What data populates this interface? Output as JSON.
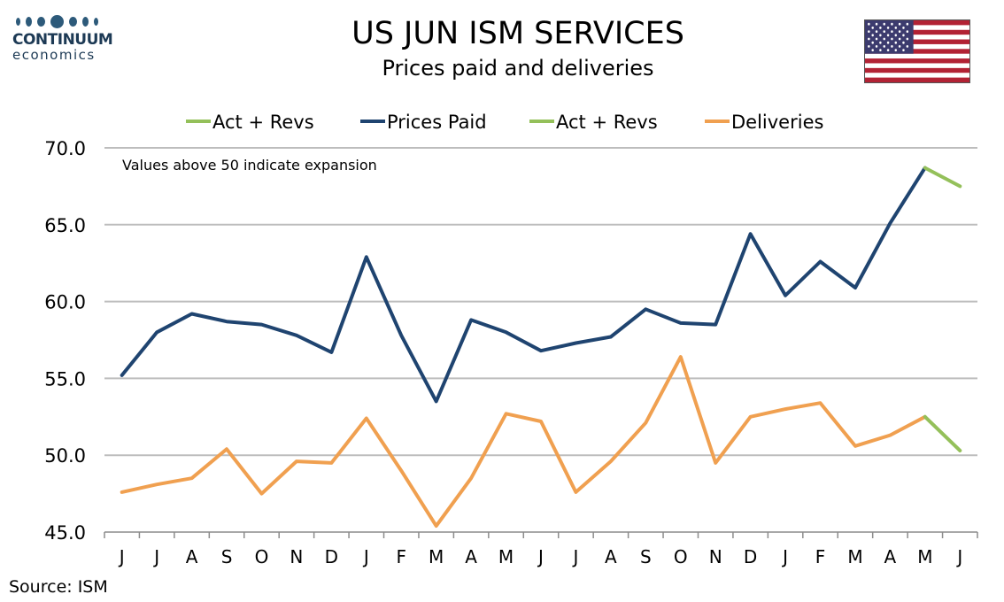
{
  "logo": {
    "brand": "CONTINUUM",
    "sub": "economics"
  },
  "header": {
    "title": "US JUN ISM SERVICES",
    "subtitle": "Prices paid and deliveries"
  },
  "source": "Source: ISM",
  "flag_icon": "us-flag-icon",
  "colors": {
    "prices_paid": "#1f4470",
    "deliveries": "#f0a050",
    "act_revs": "#94c05a",
    "grid": "#bdbdbd"
  },
  "chart_data": {
    "type": "line",
    "annotation": "Values above 50 indicate expansion",
    "categories": [
      "J",
      "J",
      "A",
      "S",
      "O",
      "N",
      "D",
      "J",
      "F",
      "M",
      "A",
      "M",
      "J",
      "J",
      "A",
      "S",
      "O",
      "N",
      "D",
      "J",
      "F",
      "M",
      "A",
      "M",
      "J"
    ],
    "ylim": [
      45,
      70
    ],
    "yticks": [
      "45.0",
      "50.0",
      "55.0",
      "60.0",
      "65.0",
      "70.0"
    ],
    "grid": true,
    "legend_position": "top",
    "legend": [
      {
        "label": "Act + Revs",
        "color": "#94c05a"
      },
      {
        "label": "Prices Paid",
        "color": "#1f4470"
      },
      {
        "label": "Act + Revs",
        "color": "#94c05a"
      },
      {
        "label": "Deliveries",
        "color": "#f0a050"
      }
    ],
    "series": [
      {
        "name": "Prices Paid",
        "values": [
          55.2,
          58.0,
          59.2,
          58.7,
          58.5,
          57.8,
          56.7,
          62.9,
          57.8,
          53.5,
          58.8,
          58.0,
          56.8,
          57.3,
          57.7,
          59.5,
          58.6,
          58.5,
          64.4,
          60.4,
          62.6,
          60.9,
          65.1,
          68.7,
          null
        ]
      },
      {
        "name": "Act + Revs",
        "values": [
          null,
          null,
          null,
          null,
          null,
          null,
          null,
          null,
          null,
          null,
          null,
          null,
          null,
          null,
          null,
          null,
          null,
          null,
          null,
          null,
          null,
          null,
          null,
          68.7,
          67.5
        ]
      },
      {
        "name": "Deliveries",
        "values": [
          47.6,
          48.1,
          48.5,
          50.4,
          47.5,
          49.6,
          49.5,
          52.4,
          49.0,
          45.4,
          48.5,
          52.7,
          52.2,
          47.6,
          49.6,
          52.1,
          56.4,
          49.5,
          52.5,
          53.0,
          53.4,
          50.6,
          51.3,
          52.5,
          null
        ]
      },
      {
        "name": "Act + Revs",
        "values": [
          null,
          null,
          null,
          null,
          null,
          null,
          null,
          null,
          null,
          null,
          null,
          null,
          null,
          null,
          null,
          null,
          null,
          null,
          null,
          null,
          null,
          null,
          null,
          52.5,
          50.3
        ]
      }
    ]
  }
}
